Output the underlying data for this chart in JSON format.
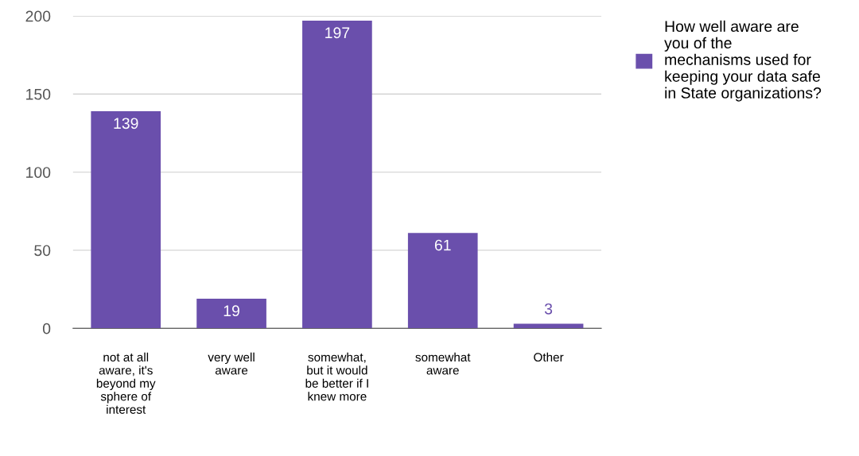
{
  "chart_data": {
    "type": "bar",
    "categories": [
      "not at all\naware, it's\nbeyond my\nsphere of\ninterest",
      "very well\naware",
      "somewhat,\nbut it would\nbe better if I\nknew more",
      "somewhat\naware",
      "Other"
    ],
    "series": [
      {
        "name": "How well aware are\nyou of the\nmechanisms used for\nkeeping your data safe\nin State organizations?",
        "color": "#6a4fac",
        "values": [
          139,
          19,
          197,
          61,
          3
        ]
      }
    ],
    "ylim": [
      0,
      200
    ],
    "yticks": [
      0,
      50,
      100,
      150,
      200
    ],
    "grid": "y",
    "legend": "top right",
    "data_labels": true
  }
}
